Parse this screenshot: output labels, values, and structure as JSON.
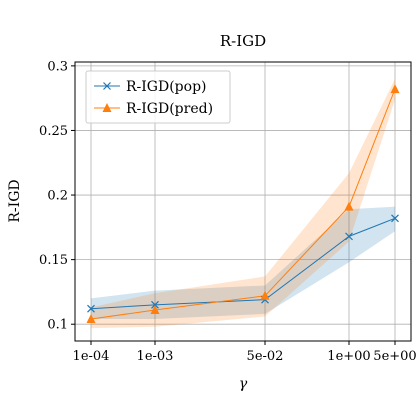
{
  "chart_data": {
    "type": "line",
    "title": "R-IGD",
    "xlabel": "γ",
    "ylabel": "R-IGD",
    "x_tick_labels": [
      "1e-04",
      "1e-03",
      "5e-02",
      "1e+00",
      "5e+00"
    ],
    "y_ticks": [
      0.1,
      0.15,
      0.2,
      0.25,
      0.3
    ],
    "y_tick_labels": [
      "0.1",
      "0.15",
      "0.2",
      "0.25",
      "0.3"
    ],
    "ylim": [
      0.087,
      0.303
    ],
    "grid": true,
    "legend_position": "top-left",
    "series": [
      {
        "name": "R-IGD(pop)",
        "color": "#1f77b4",
        "marker": "x",
        "values": [
          0.112,
          0.115,
          0.119,
          0.168,
          0.182
        ],
        "band_lower": [
          0.104,
          0.104,
          0.108,
          0.148,
          0.172
        ],
        "band_upper": [
          0.12,
          0.126,
          0.13,
          0.189,
          0.191
        ]
      },
      {
        "name": "R-IGD(pred)",
        "color": "#ff7f0e",
        "marker": "triangle",
        "values": [
          0.104,
          0.111,
          0.122,
          0.191,
          0.282
        ],
        "band_lower": [
          0.097,
          0.098,
          0.106,
          0.164,
          0.274
        ],
        "band_upper": [
          0.113,
          0.124,
          0.137,
          0.217,
          0.29
        ]
      }
    ]
  }
}
